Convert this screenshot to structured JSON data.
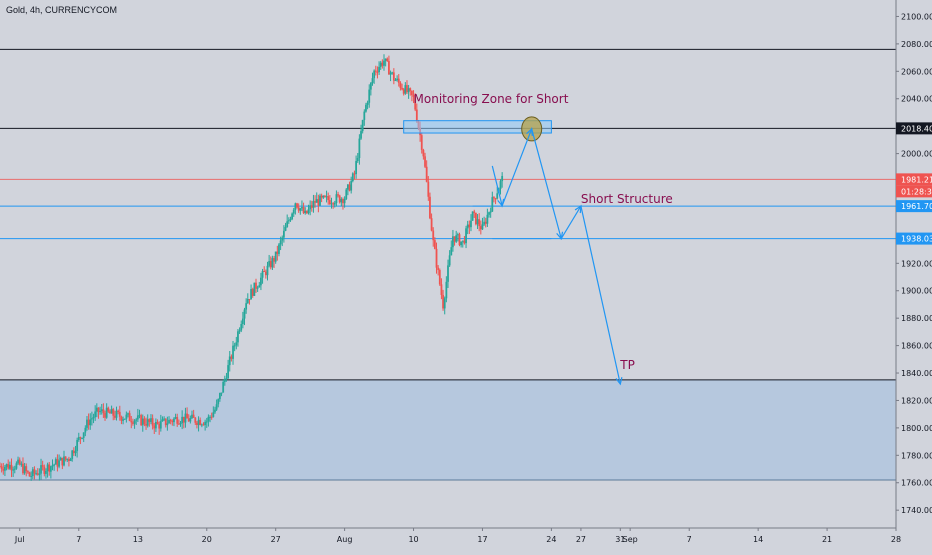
{
  "symbol_title": "Gold, 4h, CURRENCYCOM",
  "colors": {
    "background": "#d1d4dc",
    "up": "#26a69a",
    "down": "#ef5350",
    "drawing": "#2196f3",
    "annotation_text": "#880e4f",
    "zone_fill": "#b3c7de",
    "line_dark": "#131722",
    "last_price": "#ef5350"
  },
  "chart_data": {
    "type": "candlestick",
    "ylim": [
      1727,
      2112
    ],
    "yticks": [
      1740,
      1760,
      1780,
      1800,
      1820,
      1840,
      1860,
      1880,
      1900,
      1920,
      1940,
      1960,
      1980,
      2000,
      2020,
      2040,
      2060,
      2080,
      2100
    ],
    "xlim": [
      "2020-06-29",
      "2020-09-28"
    ],
    "xticks": [
      {
        "label": "Jul",
        "date": "2020-07-01"
      },
      {
        "label": "7",
        "date": "2020-07-07"
      },
      {
        "label": "13",
        "date": "2020-07-13"
      },
      {
        "label": "20",
        "date": "2020-07-20"
      },
      {
        "label": "27",
        "date": "2020-07-27"
      },
      {
        "label": "Aug",
        "date": "2020-08-03"
      },
      {
        "label": "10",
        "date": "2020-08-10"
      },
      {
        "label": "17",
        "date": "2020-08-17"
      },
      {
        "label": "24",
        "date": "2020-08-24"
      },
      {
        "label": "27",
        "date": "2020-08-27"
      },
      {
        "label": "31",
        "date": "2020-08-31"
      },
      {
        "label": "Sep",
        "date": "2020-09-01"
      },
      {
        "label": "7",
        "date": "2020-09-07"
      },
      {
        "label": "14",
        "date": "2020-09-14"
      },
      {
        "label": "21",
        "date": "2020-09-21"
      },
      {
        "label": "28",
        "date": "2020-09-28"
      }
    ],
    "price_path": [
      [
        "2020-06-29",
        1772
      ],
      [
        "2020-07-01",
        1773
      ],
      [
        "2020-07-02",
        1765
      ],
      [
        "2020-07-04",
        1772
      ],
      [
        "2020-07-06",
        1778
      ],
      [
        "2020-07-08",
        1805
      ],
      [
        "2020-07-09",
        1812
      ],
      [
        "2020-07-13",
        1806
      ],
      [
        "2020-07-15",
        1802
      ],
      [
        "2020-07-17",
        1807
      ],
      [
        "2020-07-20",
        1805
      ],
      [
        "2020-07-21",
        1815
      ],
      [
        "2020-07-22",
        1840
      ],
      [
        "2020-07-23",
        1865
      ],
      [
        "2020-07-24",
        1893
      ],
      [
        "2020-07-27",
        1925
      ],
      [
        "2020-07-28",
        1945
      ],
      [
        "2020-07-29",
        1965
      ],
      [
        "2020-07-30",
        1955
      ],
      [
        "2020-07-31",
        1965
      ],
      [
        "2020-08-03",
        1968
      ],
      [
        "2020-08-04",
        1985
      ],
      [
        "2020-08-05",
        2030
      ],
      [
        "2020-08-06",
        2060
      ],
      [
        "2020-08-07",
        2068
      ],
      [
        "2020-08-08",
        2055
      ],
      [
        "2020-08-10",
        2040
      ],
      [
        "2020-08-11",
        2000
      ],
      [
        "2020-08-12",
        1935
      ],
      [
        "2020-08-13",
        1890
      ],
      [
        "2020-08-14",
        1940
      ],
      [
        "2020-08-15",
        1935
      ],
      [
        "2020-08-16",
        1955
      ],
      [
        "2020-08-17",
        1945
      ],
      [
        "2020-08-18",
        1965
      ],
      [
        "2020-08-19",
        1981.21
      ]
    ],
    "hlines": [
      {
        "name": "resistance-high",
        "value": 2076,
        "color": "#131722"
      },
      {
        "name": "resistance-2018",
        "value": 2018.4,
        "color": "#131722",
        "label": "2018.40"
      },
      {
        "name": "last-price",
        "value": 1981.21,
        "color": "#ef5350",
        "label": "1981.21"
      },
      {
        "name": "structure-1961",
        "value": 1961.7,
        "color": "#2196f3",
        "label": "1961.70"
      },
      {
        "name": "structure-1938",
        "value": 1938.03,
        "color": "#2196f3",
        "label": "1938.03"
      },
      {
        "name": "support-1835",
        "value": 1835,
        "color": "#131722"
      }
    ],
    "support_zone": {
      "from": 1762,
      "to": 1835
    },
    "monitoring_zone": {
      "from": "2020-08-09",
      "to": "2020-08-24",
      "low": 2015,
      "high": 2024
    },
    "circle": {
      "date": "2020-08-22",
      "price": 2018
    },
    "projection_path": [
      [
        "2020-08-18",
        1991
      ],
      [
        "2020-08-19",
        1962
      ],
      [
        "2020-08-22",
        2018
      ],
      [
        "2020-08-25",
        1938
      ],
      [
        "2020-08-27",
        1961.7
      ],
      [
        "2020-08-31",
        1832
      ]
    ],
    "structure_segments": [
      {
        "name": "structure-line-1961",
        "value": 1961.7,
        "from": "2020-08-16",
        "to": "2020-08-19"
      },
      {
        "name": "structure-line-1938",
        "value": 1938.03,
        "from": "2020-08-18",
        "to": "2020-08-24"
      }
    ],
    "countdown": "01:28:33",
    "annotations": [
      {
        "name": "monitoring-zone-label",
        "text": "Monitoring Zone for Short",
        "date": "2020-08-10",
        "price": 2037
      },
      {
        "name": "short-structure-label",
        "text": "Short Structure",
        "date": "2020-08-27",
        "price": 1964
      },
      {
        "name": "tp-label",
        "text": "TP",
        "date": "2020-08-31",
        "price": 1843
      }
    ]
  }
}
